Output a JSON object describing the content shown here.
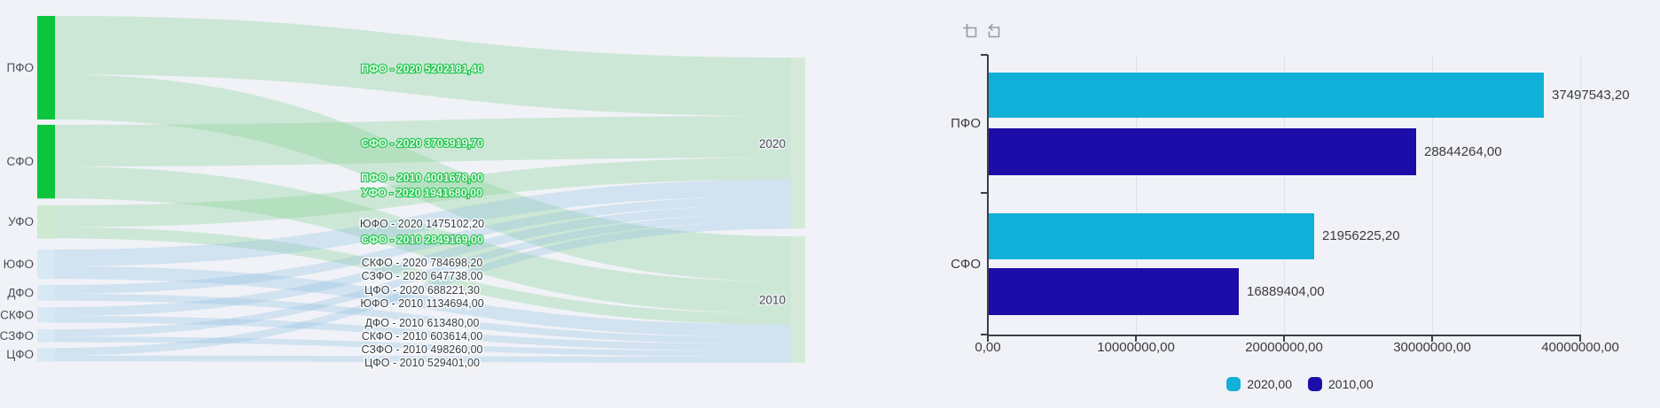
{
  "page": {
    "background": "#f0f2f7"
  },
  "chart_data": [
    {
      "type": "sankey",
      "sources": [
        "ПФО",
        "СФО",
        "УФО",
        "ЮФО",
        "ДФО",
        "СКФО",
        "СЗФО",
        "ЦФО"
      ],
      "targets": [
        "2020",
        "2010"
      ],
      "flows": [
        {
          "source": "ПФО",
          "target": "2020",
          "value": 5202181.4,
          "label": "ПФО - 2020 5202181,40",
          "highlight": true
        },
        {
          "source": "ПФО",
          "target": "2010",
          "value": 4001678.0,
          "label": "ПФО - 2010 4001678,00",
          "highlight": true
        },
        {
          "source": "СФО",
          "target": "2020",
          "value": 3703919.7,
          "label": "СФО - 2020 3703919,70",
          "highlight": true
        },
        {
          "source": "СФО",
          "target": "2010",
          "value": 2849169.0,
          "label": "СФО - 2010 2849169,00",
          "highlight": true
        },
        {
          "source": "УФО",
          "target": "2020",
          "value": 1941680.0,
          "label": "УФО - 2020 1941680,00",
          "highlight": true
        },
        {
          "source": "УФО",
          "target": "2010",
          "value": 1000000.0,
          "label": null,
          "highlight": false,
          "approx": true
        },
        {
          "source": "ЮФО",
          "target": "2020",
          "value": 1475102.2,
          "label": "ЮФО - 2020 1475102,20",
          "highlight": false
        },
        {
          "source": "ЮФО",
          "target": "2010",
          "value": 1134694.0,
          "label": "ЮФО - 2010 1134694,00",
          "highlight": false
        },
        {
          "source": "ДФО",
          "target": "2020",
          "value": 780000.0,
          "label": null,
          "highlight": false,
          "approx": true
        },
        {
          "source": "ДФО",
          "target": "2010",
          "value": 613480.0,
          "label": "ДФО - 2010 613480,00",
          "highlight": false
        },
        {
          "source": "СКФО",
          "target": "2020",
          "value": 784698.2,
          "label": "СКФО - 2020 784698,20",
          "highlight": false
        },
        {
          "source": "СКФО",
          "target": "2010",
          "value": 603614.0,
          "label": "СКФО - 2010 603614,00",
          "highlight": false
        },
        {
          "source": "СЗФО",
          "target": "2020",
          "value": 647738.0,
          "label": "СЗФО - 2020 647738,00",
          "highlight": false
        },
        {
          "source": "СЗФО",
          "target": "2010",
          "value": 498260.0,
          "label": "СЗФО - 2010 498260,00",
          "highlight": false
        },
        {
          "source": "ЦФО",
          "target": "2020",
          "value": 688221.3,
          "label": "ЦФО - 2020 688221,30",
          "highlight": false
        },
        {
          "source": "ЦФО",
          "target": "2010",
          "value": 529401.0,
          "label": "ЦФО - 2010 529401,00",
          "highlight": false
        }
      ],
      "colors": {
        "node_selected": "#0bc63c",
        "node_green": "#cde9d2",
        "node_blue": "#d7e9f5",
        "node_target": "#d6ead9",
        "flow_green": "rgba(134,209,150,0.33)",
        "flow_blue": "rgba(138,188,224,0.30)"
      }
    },
    {
      "type": "bar",
      "orientation": "horizontal",
      "categories": [
        "ПФО",
        "СФО"
      ],
      "series": [
        {
          "name": "2020,00",
          "color": "#10b0d8",
          "values": [
            37497543.2,
            21956225.2
          ],
          "value_labels": [
            "37497543,20",
            "21956225,20"
          ]
        },
        {
          "name": "2010,00",
          "color": "#1c0ca8",
          "values": [
            28844264.0,
            16889404.0
          ],
          "value_labels": [
            "28844264,00",
            "16889404,00"
          ]
        }
      ],
      "xlim": [
        0,
        40000000
      ],
      "x_ticks": [
        "0,00",
        "10000000,00",
        "20000000,00",
        "30000000,00",
        "40000000,00"
      ],
      "legend": [
        "2020,00",
        "2010,00"
      ],
      "legend_position": "bottom",
      "toolbar_icons": [
        "zoom-selection-icon",
        "reset-zoom-icon"
      ]
    }
  ]
}
